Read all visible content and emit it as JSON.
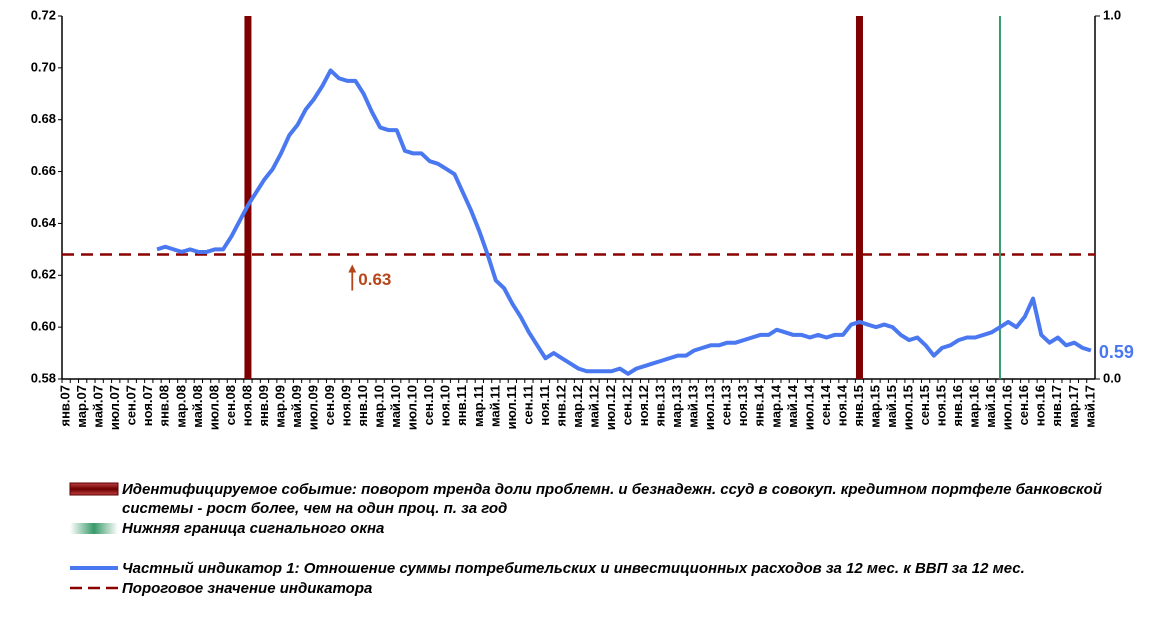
{
  "chart_data": {
    "type": "line",
    "categories": [
      "янв.07",
      null,
      "мар.07",
      null,
      "май.07",
      null,
      "июл.07",
      null,
      "сен.07",
      null,
      "ноя.07",
      null,
      "янв.08",
      null,
      "мар.08",
      null,
      "май.08",
      null,
      "июл.08",
      null,
      "сен.08",
      null,
      "ноя.08",
      null,
      "янв.09",
      null,
      "мар.09",
      null,
      "май.09",
      null,
      "июл.09",
      null,
      "сен.09",
      null,
      "ноя.09",
      null,
      "янв.10",
      null,
      "мар.10",
      null,
      "май.10",
      null,
      "июл.10",
      null,
      "сен.10",
      null,
      "ноя.10",
      null,
      "янв.11",
      null,
      "мар.11",
      null,
      "май.11",
      null,
      "июл.11",
      null,
      "сен.11",
      null,
      "ноя.11",
      null,
      "янв.12",
      null,
      "мар.12",
      null,
      "май.12",
      null,
      "июл.12",
      null,
      "сен.12",
      null,
      "ноя.12",
      null,
      "янв.13",
      null,
      "мар.13",
      null,
      "май.13",
      null,
      "июл.13",
      null,
      "сен.13",
      null,
      "ноя.13",
      null,
      "янв.14",
      null,
      "мар.14",
      null,
      "май.14",
      null,
      "июл.14",
      null,
      "сен.14",
      null,
      "ноя.14",
      null,
      "янв.15",
      null,
      "мар.15",
      null,
      "май.15",
      null,
      "июл.15",
      null,
      "сен.15",
      null,
      "ноя.15",
      null,
      "янв.16",
      null,
      "мар.16",
      null,
      "май.16",
      null,
      "июл.16",
      null,
      "сен.16",
      null,
      "ноя.16",
      null,
      "янв.17",
      null,
      "мар.17",
      null,
      "май.17"
    ],
    "series": [
      {
        "name": "Частный индикатор 1: Отношение суммы потребительских и инвестиционных  расходов  за 12 мес. к ВВП за 12 мес.",
        "type": "line",
        "color": "#4a78f0",
        "values": [
          null,
          null,
          null,
          null,
          null,
          null,
          null,
          null,
          null,
          null,
          null,
          0.63,
          0.631,
          0.63,
          0.629,
          0.63,
          0.629,
          0.629,
          0.63,
          0.63,
          0.635,
          0.641,
          0.647,
          0.652,
          0.657,
          0.661,
          0.667,
          0.674,
          0.678,
          0.684,
          0.688,
          0.693,
          0.699,
          0.696,
          0.695,
          0.695,
          0.69,
          0.683,
          0.677,
          0.676,
          0.676,
          0.668,
          0.667,
          0.667,
          0.664,
          0.663,
          0.661,
          0.659,
          0.652,
          0.645,
          0.637,
          0.628,
          0.618,
          0.615,
          0.609,
          0.604,
          0.598,
          0.593,
          0.588,
          0.59,
          0.588,
          0.586,
          0.584,
          0.583,
          0.583,
          0.583,
          0.583,
          0.584,
          0.582,
          0.584,
          0.585,
          0.586,
          0.587,
          0.588,
          0.589,
          0.589,
          0.591,
          0.592,
          0.593,
          0.593,
          0.594,
          0.594,
          0.595,
          0.596,
          0.597,
          0.597,
          0.599,
          0.598,
          0.597,
          0.597,
          0.596,
          0.597,
          0.596,
          0.597,
          0.597,
          0.601,
          0.602,
          0.601,
          0.6,
          0.601,
          0.6,
          0.597,
          0.595,
          0.596,
          0.593,
          0.589,
          0.592,
          0.593,
          0.595,
          0.596,
          0.596,
          0.597,
          0.598,
          0.6,
          0.602,
          0.6,
          0.604,
          0.611,
          0.597,
          0.594,
          0.596,
          0.593,
          0.594,
          0.592,
          0.591
        ],
        "value_labels": [
          null,
          null,
          null,
          null,
          null,
          null,
          null,
          null,
          null,
          null,
          null,
          null,
          null,
          null,
          null,
          null,
          null,
          null,
          null,
          null,
          null,
          null,
          null,
          null,
          null,
          null,
          null,
          null,
          null,
          null,
          null,
          null,
          null,
          null,
          null,
          null,
          null,
          null,
          null,
          null,
          null,
          null,
          null,
          null,
          null,
          null,
          null,
          null,
          null,
          null,
          null,
          null,
          null,
          null,
          null,
          null,
          null,
          null,
          null,
          null,
          null,
          null,
          null,
          null,
          null,
          null,
          null,
          null,
          null,
          null,
          null,
          null,
          null,
          null,
          null,
          null,
          null,
          null,
          null,
          null,
          null,
          null,
          null,
          null,
          null,
          null,
          null,
          null,
          null,
          null,
          null,
          null,
          null,
          null,
          null,
          null,
          null,
          null,
          null,
          null,
          null,
          null,
          null,
          null,
          null,
          null,
          null,
          null,
          null,
          null,
          null,
          null,
          null,
          null,
          null,
          null,
          null,
          null,
          null,
          null,
          null,
          null,
          null,
          null,
          "0.59"
        ]
      },
      {
        "name": "Идентифицируемое  событие: поворот тренда доли проблемн. и безнадежн.  ссуд   в совокуп. кредитном портфеле банковской системы  - рост более, чем  на один проц. п. за год",
        "type": "bar",
        "axis": "y2",
        "color": "#7f0000",
        "values": [
          null,
          null,
          null,
          null,
          null,
          null,
          null,
          null,
          null,
          null,
          null,
          null,
          null,
          null,
          null,
          null,
          null,
          null,
          null,
          null,
          null,
          null,
          1,
          null,
          null,
          null,
          null,
          null,
          null,
          null,
          null,
          null,
          null,
          null,
          null,
          null,
          null,
          null,
          null,
          null,
          null,
          null,
          null,
          null,
          null,
          null,
          null,
          null,
          null,
          null,
          null,
          null,
          null,
          null,
          null,
          null,
          null,
          null,
          null,
          null,
          null,
          null,
          null,
          null,
          null,
          null,
          null,
          null,
          null,
          null,
          null,
          null,
          null,
          null,
          null,
          null,
          null,
          null,
          null,
          null,
          null,
          null,
          null,
          null,
          null,
          null,
          null,
          null,
          null,
          null,
          null,
          null,
          null,
          null,
          null,
          null,
          1,
          null,
          null,
          null,
          null,
          null,
          null,
          null,
          null,
          null,
          null,
          null,
          null,
          null,
          null,
          null,
          null,
          null,
          null,
          null,
          null,
          null,
          null,
          null,
          null,
          null,
          null,
          null,
          null
        ]
      },
      {
        "name": "Нижняя  граница  сигнального окна",
        "type": "bar",
        "axis": "y2",
        "color": "#3a9a6a",
        "values": [
          null,
          null,
          null,
          null,
          null,
          null,
          null,
          null,
          null,
          null,
          null,
          null,
          null,
          null,
          null,
          null,
          null,
          null,
          null,
          null,
          null,
          null,
          null,
          null,
          null,
          null,
          null,
          null,
          null,
          null,
          null,
          null,
          null,
          null,
          null,
          null,
          null,
          null,
          null,
          null,
          null,
          null,
          null,
          null,
          null,
          null,
          null,
          null,
          null,
          null,
          null,
          null,
          null,
          null,
          null,
          null,
          null,
          null,
          null,
          null,
          null,
          null,
          null,
          null,
          null,
          null,
          null,
          null,
          null,
          null,
          null,
          null,
          null,
          null,
          null,
          null,
          null,
          null,
          null,
          null,
          null,
          null,
          null,
          null,
          null,
          null,
          null,
          null,
          null,
          null,
          null,
          null,
          null,
          null,
          null,
          null,
          null,
          null,
          null,
          null,
          null,
          null,
          null,
          null,
          null,
          null,
          null,
          null,
          null,
          null,
          null,
          null,
          null,
          1,
          null,
          null,
          null,
          null,
          null,
          null,
          null,
          null,
          null,
          null,
          null
        ]
      }
    ],
    "threshold": {
      "name": "Пороговое значение  индикатора",
      "color": "#8b0000",
      "value": 0.628,
      "label": "0.63",
      "label_color": "#b5451b"
    },
    "ylim": [
      0.58,
      0.72
    ],
    "yticks": [
      0.58,
      0.62,
      0.64,
      0.66,
      0.68,
      {
        "value": 0.6,
        "label": "0.60"
      },
      {
        "value": 0.7,
        "label": "0.70"
      },
      0.72
    ],
    "y2lim": [
      0,
      1
    ],
    "y2ticks": [
      {
        "value": 0,
        "label": "0.0"
      },
      {
        "value": 1,
        "label": "1.0"
      }
    ],
    "grid": false
  }
}
